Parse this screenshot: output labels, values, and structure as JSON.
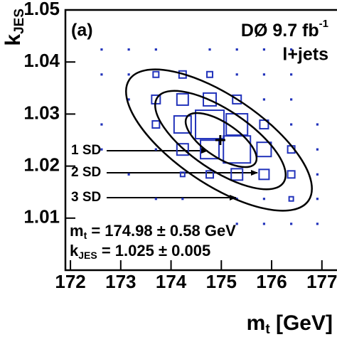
{
  "chart_data": {
    "type": "box2d",
    "panel_label": "(a)",
    "experiment": "DØ 9.7 fb",
    "experiment_sup": "-1",
    "channel": "l+jets",
    "xlabel": "m",
    "xlabel_sub": "t",
    "xlabel_unit": " [GeV]",
    "ylabel": "k",
    "ylabel_sub": "JES",
    "xlim": [
      171.9,
      177.3
    ],
    "ylim": [
      1.0,
      1.05
    ],
    "xticks": [
      172,
      173,
      174,
      175,
      176,
      177
    ],
    "yticks": [
      1.01,
      1.02,
      1.03,
      1.04,
      1.05
    ],
    "color": "#2233bb",
    "boxes": {
      "x": [
        172.62,
        173.16,
        173.7,
        174.77,
        175.31,
        175.85,
        176.39,
        172.62,
        173.16,
        173.7,
        174.23,
        174.77,
        175.31,
        175.85,
        176.39,
        173.16,
        173.7,
        174.23,
        174.77,
        175.31,
        175.85,
        176.39,
        172.62,
        173.7,
        174.23,
        174.77,
        175.31,
        175.85,
        176.39,
        176.91,
        172.62,
        173.7,
        174.23,
        174.77,
        175.31,
        175.85,
        176.39,
        176.91,
        173.16,
        174.23,
        174.77,
        175.31,
        175.85,
        176.39,
        176.91,
        173.7,
        174.23,
        175.31,
        175.85,
        176.39,
        176.91,
        175.31,
        175.85,
        176.39,
        176.91
      ],
      "y": [
        1.0424,
        1.0424,
        1.0424,
        1.0424,
        1.0424,
        1.0424,
        1.0424,
        1.0376,
        1.0376,
        1.0376,
        1.0376,
        1.0376,
        1.0376,
        1.0376,
        1.0376,
        1.0328,
        1.0328,
        1.0328,
        1.0328,
        1.0328,
        1.0328,
        1.0328,
        1.028,
        1.028,
        1.028,
        1.028,
        1.028,
        1.028,
        1.028,
        1.028,
        1.0232,
        1.0232,
        1.0232,
        1.0232,
        1.0232,
        1.0232,
        1.0232,
        1.0232,
        1.0184,
        1.0184,
        1.0184,
        1.0184,
        1.0184,
        1.0184,
        1.0184,
        1.0137,
        1.0137,
        1.0137,
        1.0137,
        1.0137,
        1.0137,
        1.0089,
        1.0089,
        1.0089,
        1.0089
      ],
      "size": [
        1,
        1,
        1,
        1,
        1,
        1,
        1,
        1,
        1,
        4,
        5,
        4,
        1,
        1,
        1,
        1,
        6,
        8,
        9,
        6,
        1,
        1,
        1,
        5,
        12,
        20,
        15,
        6,
        1,
        1,
        1,
        1,
        8,
        13,
        19,
        10,
        5,
        1,
        1,
        3,
        5,
        8,
        7,
        5,
        1,
        1,
        1,
        1,
        1,
        3,
        1,
        1,
        1,
        1,
        1
      ]
    },
    "best_fit": [
      174.98,
      1.025
    ],
    "contour_labels": [
      "1 SD",
      "2 SD",
      "3 SD"
    ],
    "result_lines": [
      {
        "sym": "m",
        "sub": "t",
        "text": " = 174.98 ± 0.58 GeV"
      },
      {
        "sym": "k",
        "sub": "JES",
        "text": " = 1.025 ± 0.005"
      }
    ]
  }
}
